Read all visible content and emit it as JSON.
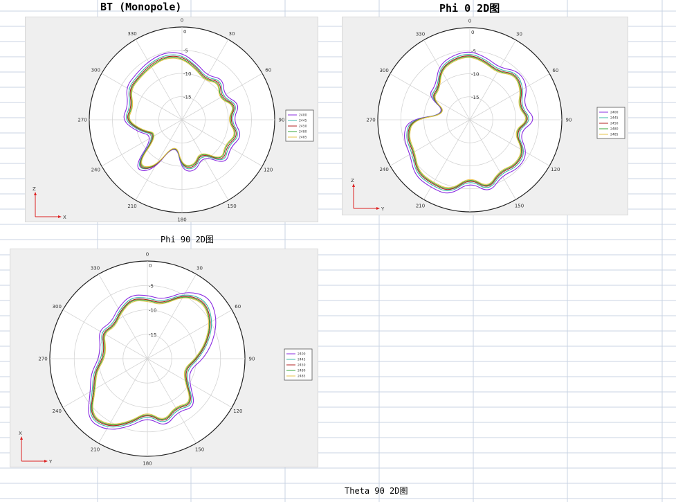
{
  "titles": {
    "t1": "BT (Monopole)",
    "t2": "Phi 0 2D图",
    "t3": "Phi 90 2D图",
    "t4": "Theta 90 2D图"
  },
  "colors": {
    "gridline": "#c9d3e3",
    "series": [
      "#8a2be2",
      "#3cb8a8",
      "#b22222",
      "#3aa63a",
      "#e6c34a"
    ]
  },
  "legend_labels": [
    "2400",
    "2445",
    "2450",
    "2480",
    "2485"
  ],
  "chart_data": [
    {
      "type": "polar-line",
      "angle_ticks": [
        "0",
        "30",
        "60",
        "90",
        "120",
        "150",
        "180",
        "210",
        "240",
        "270",
        "300",
        "330"
      ],
      "radial_ticks": [
        "0",
        "-5",
        "-10",
        "-15"
      ],
      "axis_labels": [
        "Z",
        "X"
      ],
      "legend": [
        "2400",
        "2445",
        "2450",
        "2480",
        "2485"
      ],
      "theta_deg": [
        0,
        15,
        30,
        45,
        60,
        75,
        90,
        105,
        120,
        135,
        150,
        165,
        180,
        195,
        210,
        225,
        240,
        255,
        270,
        285,
        300,
        315,
        330,
        345
      ],
      "series": [
        {
          "name": "2400",
          "values": [
            -5.5,
            -7.5,
            -9.0,
            -7.5,
            -9.5,
            -7.0,
            -9.0,
            -6.5,
            -8.0,
            -6.5,
            -11.0,
            -8.5,
            -9.0,
            -15.0,
            -7.0,
            -5.0,
            -13.0,
            -10.0,
            -7.0,
            -8.0,
            -6.0,
            -6.0,
            -5.5,
            -5.0
          ]
        },
        {
          "name": "2445",
          "values": [
            -6.0,
            -8.0,
            -9.5,
            -8.0,
            -10.0,
            -7.5,
            -9.5,
            -7.0,
            -8.5,
            -7.0,
            -11.5,
            -9.0,
            -9.5,
            -15.0,
            -7.5,
            -5.5,
            -13.5,
            -10.5,
            -7.5,
            -8.5,
            -6.5,
            -6.5,
            -6.0,
            -5.5
          ]
        },
        {
          "name": "2450",
          "values": [
            -6.3,
            -8.2,
            -9.8,
            -8.3,
            -10.3,
            -7.8,
            -9.8,
            -7.3,
            -8.8,
            -7.3,
            -11.8,
            -9.3,
            -9.8,
            -15.0,
            -7.5,
            -5.8,
            -13.8,
            -10.8,
            -7.8,
            -8.8,
            -6.8,
            -6.8,
            -6.3,
            -5.8
          ]
        },
        {
          "name": "2480",
          "values": [
            -6.6,
            -8.5,
            -10.0,
            -8.6,
            -10.6,
            -8.0,
            -10.0,
            -7.6,
            -9.1,
            -7.6,
            -12.0,
            -9.6,
            -10.0,
            -15.0,
            -7.8,
            -6.0,
            -14.0,
            -11.0,
            -8.0,
            -9.0,
            -7.0,
            -7.0,
            -6.6,
            -6.0
          ]
        },
        {
          "name": "2485",
          "values": [
            -6.8,
            -8.7,
            -10.2,
            -8.8,
            -10.8,
            -8.2,
            -10.2,
            -7.8,
            -9.3,
            -7.8,
            -12.2,
            -9.8,
            -10.2,
            -15.0,
            -8.0,
            -6.2,
            -14.2,
            -11.2,
            -8.2,
            -9.2,
            -7.2,
            -7.2,
            -6.8,
            -6.2
          ]
        }
      ]
    },
    {
      "type": "polar-line",
      "angle_ticks": [
        "0",
        "30",
        "60",
        "90",
        "120",
        "150",
        "180",
        "210",
        "240",
        "270",
        "300",
        "330"
      ],
      "radial_ticks": [
        "0",
        "-5",
        "-10",
        "-15"
      ],
      "axis_labels": [
        "Z",
        "Y"
      ],
      "legend": [
        "2400",
        "2445",
        "2450",
        "2480",
        "2485"
      ],
      "theta_deg": [
        0,
        15,
        30,
        45,
        60,
        75,
        90,
        105,
        120,
        135,
        150,
        165,
        180,
        195,
        210,
        225,
        240,
        255,
        270,
        285,
        300,
        315,
        330,
        345
      ],
      "series": [
        {
          "name": "2400",
          "values": [
            -5.0,
            -6.0,
            -7.0,
            -5.0,
            -5.5,
            -8.0,
            -5.5,
            -9.0,
            -5.5,
            -5.0,
            -6.0,
            -3.5,
            -6.5,
            -3.0,
            -3.0,
            -3.0,
            -5.0,
            -5.0,
            -6.5,
            -15.0,
            -9.5,
            -9.5,
            -6.5,
            -5.5
          ]
        },
        {
          "name": "2445",
          "values": [
            -5.5,
            -6.5,
            -7.5,
            -5.5,
            -6.5,
            -8.5,
            -6.5,
            -9.5,
            -6.0,
            -5.5,
            -6.5,
            -4.0,
            -7.0,
            -3.5,
            -3.5,
            -3.5,
            -5.5,
            -5.5,
            -7.0,
            -15.0,
            -10.0,
            -10.0,
            -7.0,
            -6.0
          ]
        },
        {
          "name": "2450",
          "values": [
            -5.8,
            -6.8,
            -7.8,
            -5.8,
            -6.8,
            -8.8,
            -6.8,
            -9.8,
            -6.3,
            -5.8,
            -6.8,
            -4.3,
            -7.3,
            -3.8,
            -3.8,
            -3.8,
            -5.8,
            -5.8,
            -7.3,
            -15.0,
            -10.3,
            -10.3,
            -7.3,
            -6.3
          ]
        },
        {
          "name": "2480",
          "values": [
            -6.0,
            -7.0,
            -8.0,
            -6.0,
            -7.0,
            -9.0,
            -7.0,
            -10.0,
            -6.5,
            -6.0,
            -7.0,
            -4.5,
            -7.5,
            -4.0,
            -4.0,
            -4.0,
            -6.0,
            -6.0,
            -7.5,
            -15.0,
            -10.5,
            -10.5,
            -7.5,
            -6.5
          ]
        },
        {
          "name": "2485",
          "values": [
            -6.2,
            -7.2,
            -8.2,
            -6.2,
            -7.2,
            -9.2,
            -7.2,
            -10.2,
            -6.7,
            -6.2,
            -7.2,
            -4.7,
            -7.7,
            -4.2,
            -4.2,
            -4.2,
            -6.2,
            -6.2,
            -7.7,
            -15.0,
            -10.7,
            -10.7,
            -7.7,
            -6.7
          ]
        }
      ]
    },
    {
      "type": "polar-line",
      "angle_ticks": [
        "0",
        "30",
        "60",
        "90",
        "120",
        "150",
        "180",
        "210",
        "240",
        "270",
        "300",
        "330"
      ],
      "radial_ticks": [
        "0",
        "-5",
        "-10",
        "-15"
      ],
      "axis_labels": [
        "X",
        "Y"
      ],
      "legend": [
        "2400",
        "2445",
        "2450",
        "2480",
        "2485"
      ],
      "theta_deg": [
        0,
        15,
        30,
        45,
        60,
        75,
        90,
        105,
        120,
        135,
        150,
        165,
        180,
        195,
        210,
        225,
        240,
        255,
        270,
        285,
        300,
        315,
        330,
        345
      ],
      "series": [
        {
          "name": "2400",
          "values": [
            -7.0,
            -7.5,
            -4.0,
            -2.0,
            -3.5,
            -6.0,
            -8.5,
            -11.0,
            -10.0,
            -6.0,
            -7.5,
            -5.5,
            -8.0,
            -5.5,
            -3.0,
            -2.5,
            -6.5,
            -8.0,
            -10.0,
            -10.0,
            -8.5,
            -9.5,
            -8.0,
            -6.5
          ]
        },
        {
          "name": "2445",
          "values": [
            -7.5,
            -8.0,
            -4.5,
            -3.0,
            -4.5,
            -7.0,
            -9.5,
            -11.5,
            -10.5,
            -6.5,
            -8.0,
            -6.0,
            -8.5,
            -6.0,
            -3.5,
            -3.0,
            -7.0,
            -8.5,
            -10.5,
            -10.5,
            -9.0,
            -10.0,
            -8.5,
            -7.0
          ]
        },
        {
          "name": "2450",
          "values": [
            -7.8,
            -8.3,
            -4.8,
            -3.3,
            -4.8,
            -7.3,
            -9.8,
            -11.8,
            -10.8,
            -6.8,
            -8.3,
            -6.3,
            -8.8,
            -6.3,
            -3.8,
            -3.3,
            -7.3,
            -8.8,
            -10.8,
            -10.8,
            -9.3,
            -10.3,
            -8.8,
            -7.3
          ]
        },
        {
          "name": "2480",
          "values": [
            -8.0,
            -8.5,
            -5.0,
            -3.5,
            -5.0,
            -7.5,
            -10.0,
            -12.0,
            -11.0,
            -7.0,
            -8.5,
            -6.5,
            -9.0,
            -6.5,
            -4.0,
            -3.5,
            -7.5,
            -9.0,
            -11.0,
            -11.0,
            -9.5,
            -10.5,
            -9.0,
            -7.5
          ]
        },
        {
          "name": "2485",
          "values": [
            -8.2,
            -8.7,
            -5.2,
            -3.7,
            -5.2,
            -7.7,
            -10.2,
            -12.2,
            -11.2,
            -7.2,
            -8.7,
            -6.7,
            -9.2,
            -6.7,
            -4.2,
            -3.7,
            -7.7,
            -9.2,
            -11.2,
            -11.2,
            -9.7,
            -10.7,
            -9.2,
            -7.7
          ]
        }
      ]
    }
  ]
}
